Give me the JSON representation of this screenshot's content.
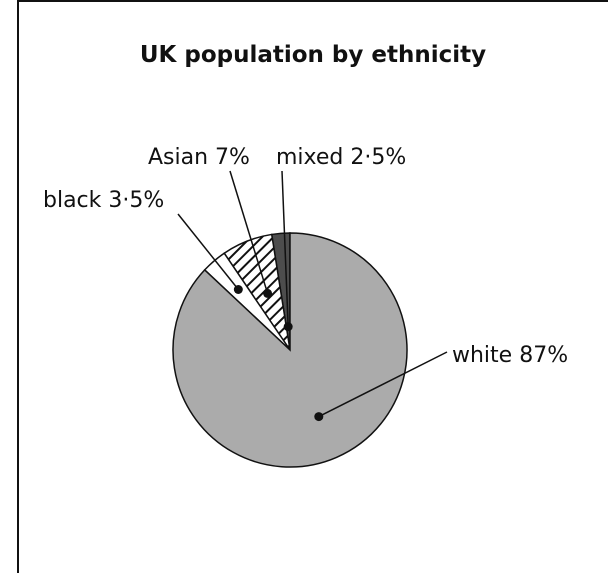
{
  "chart_data": {
    "type": "pie",
    "title": "UK population by ethnicity",
    "slices": [
      {
        "name": "mixed",
        "value": 2.5,
        "label": "mixed 2·5%",
        "color": "#4d4d4d",
        "pattern": "solid"
      },
      {
        "name": "Asian",
        "value": 7,
        "label": "Asian 7%",
        "color": "#ffffff",
        "pattern": "hatch"
      },
      {
        "name": "black",
        "value": 3.5,
        "label": "black 3·5%",
        "color": "#ffffff",
        "pattern": "solid"
      },
      {
        "name": "white",
        "value": 87,
        "label": "white 87%",
        "color": "#ababab",
        "pattern": "solid"
      }
    ],
    "direction": "counterclockwise",
    "start": "top"
  }
}
